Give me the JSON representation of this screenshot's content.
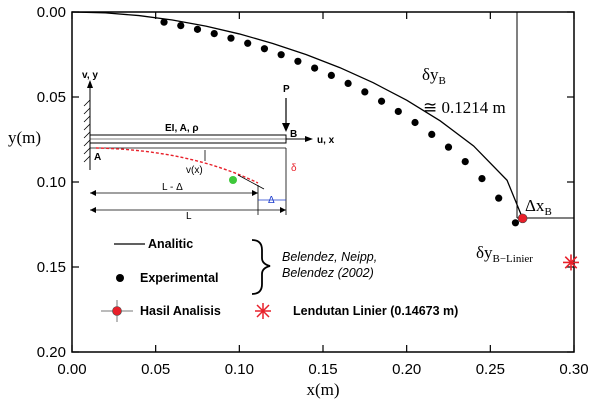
{
  "chart_data": {
    "type": "line",
    "xlabel": "x(m)",
    "ylabel": "y(m)",
    "xlim": [
      0.0,
      0.3
    ],
    "ylim": [
      0.0,
      0.2
    ],
    "y_inverted": true,
    "x_ticks": [
      "0.00",
      "0.05",
      "0.10",
      "0.15",
      "0.20",
      "0.25",
      "0.30"
    ],
    "y_ticks": [
      "0.00",
      "0.05",
      "0.10",
      "0.15",
      "0.20"
    ],
    "x_tick_values": [
      0.0,
      0.05,
      0.1,
      0.15,
      0.2,
      0.25,
      0.3
    ],
    "y_tick_values": [
      0.0,
      0.05,
      0.1,
      0.15,
      0.2
    ],
    "grid": false,
    "series": [
      {
        "name": "Analitic",
        "style": "line",
        "x": [
          0.0,
          0.02,
          0.04,
          0.06,
          0.08,
          0.1,
          0.12,
          0.14,
          0.16,
          0.18,
          0.2,
          0.22,
          0.24,
          0.26,
          0.2693
        ],
        "y": [
          0.0,
          0.0005,
          0.0021,
          0.0047,
          0.0083,
          0.0129,
          0.0185,
          0.0251,
          0.0327,
          0.0416,
          0.0519,
          0.064,
          0.0788,
          0.099,
          0.1214
        ]
      },
      {
        "name": "Experimental",
        "style": "dots",
        "x": [
          0.055,
          0.065,
          0.075,
          0.085,
          0.095,
          0.105,
          0.115,
          0.125,
          0.135,
          0.145,
          0.155,
          0.165,
          0.175,
          0.185,
          0.195,
          0.205,
          0.215,
          0.225,
          0.235,
          0.245,
          0.255,
          0.265
        ],
        "y": [
          0.006,
          0.008,
          0.0102,
          0.0127,
          0.0154,
          0.0184,
          0.0216,
          0.0251,
          0.029,
          0.033,
          0.0373,
          0.042,
          0.047,
          0.0525,
          0.0585,
          0.065,
          0.072,
          0.0795,
          0.088,
          0.098,
          0.1095,
          0.124
        ]
      },
      {
        "name": "Hasil Analisis",
        "style": "marker-red",
        "x": [
          0.2693
        ],
        "y": [
          0.1214
        ]
      },
      {
        "name": "Lendutan Linier (0.14673 m)",
        "style": "star-red",
        "x": [
          0.3
        ],
        "y": [
          0.14673
        ]
      }
    ],
    "legend": {
      "placement": "bottom-left",
      "entries": [
        "Analitic",
        "Experimental",
        "Hasil Analisis",
        "Lendutan Linier (0.14673 m)"
      ],
      "reference": [
        "Belendez, Neipp,",
        "Belendez (2002)"
      ]
    },
    "annotations": {
      "delta_yb_label": "δy",
      "delta_yb_sub": "B",
      "delta_yb_value": "≅ 0.1214 m",
      "delta_xb_label": "Δx",
      "delta_xb_sub": "B",
      "delta_yb_lin_label": "δy",
      "delta_yb_lin_sub": "B−Linier"
    },
    "inset": {
      "axis_v": "v, y",
      "axis_u": "u, x",
      "props": "EI, A, ρ",
      "point_a": "A",
      "point_b": "B",
      "load": "P",
      "vx": "v(x)",
      "delta": "δ",
      "big_delta": "Δ",
      "len_short": "L - Δ",
      "len": "L"
    }
  },
  "colors": {
    "red": "#e8202a",
    "green": "#3ec83a",
    "blue": "#1c3ccc"
  }
}
